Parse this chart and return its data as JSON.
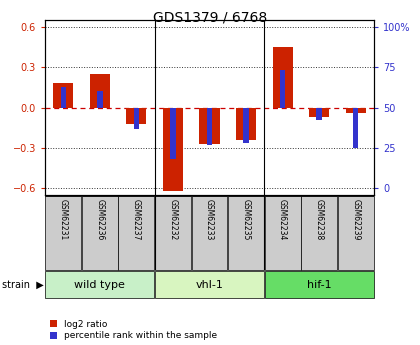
{
  "title": "GDS1379 / 6768",
  "samples": [
    "GSM62231",
    "GSM62236",
    "GSM62237",
    "GSM62232",
    "GSM62233",
    "GSM62235",
    "GSM62234",
    "GSM62238",
    "GSM62239"
  ],
  "log2_ratio": [
    0.18,
    0.25,
    -0.12,
    -0.62,
    -0.27,
    -0.24,
    0.45,
    -0.07,
    -0.04
  ],
  "percentile_rank_pct": [
    63,
    60,
    37,
    18,
    27,
    28,
    73,
    42,
    25
  ],
  "groups": [
    {
      "label": "wild type",
      "start": 0,
      "end": 3,
      "color": "#c8f0c8"
    },
    {
      "label": "vhl-1",
      "start": 3,
      "end": 6,
      "color": "#d8f5c0"
    },
    {
      "label": "hif-1",
      "start": 6,
      "end": 9,
      "color": "#66dd66"
    }
  ],
  "bar_color_red": "#cc2200",
  "bar_color_blue": "#3333cc",
  "ylim_lo": -0.65,
  "ylim_hi": 0.65,
  "yticks_left": [
    -0.6,
    -0.3,
    0.0,
    0.3,
    0.6
  ],
  "yticks_right": [
    0,
    25,
    50,
    75,
    100
  ],
  "hline_zero_color": "#cc0000",
  "hline_dot_color": "#333333",
  "sample_box_color": "#cccccc",
  "legend_log2": "log2 ratio",
  "legend_pct": "percentile rank within the sample",
  "strain_label": "strain"
}
